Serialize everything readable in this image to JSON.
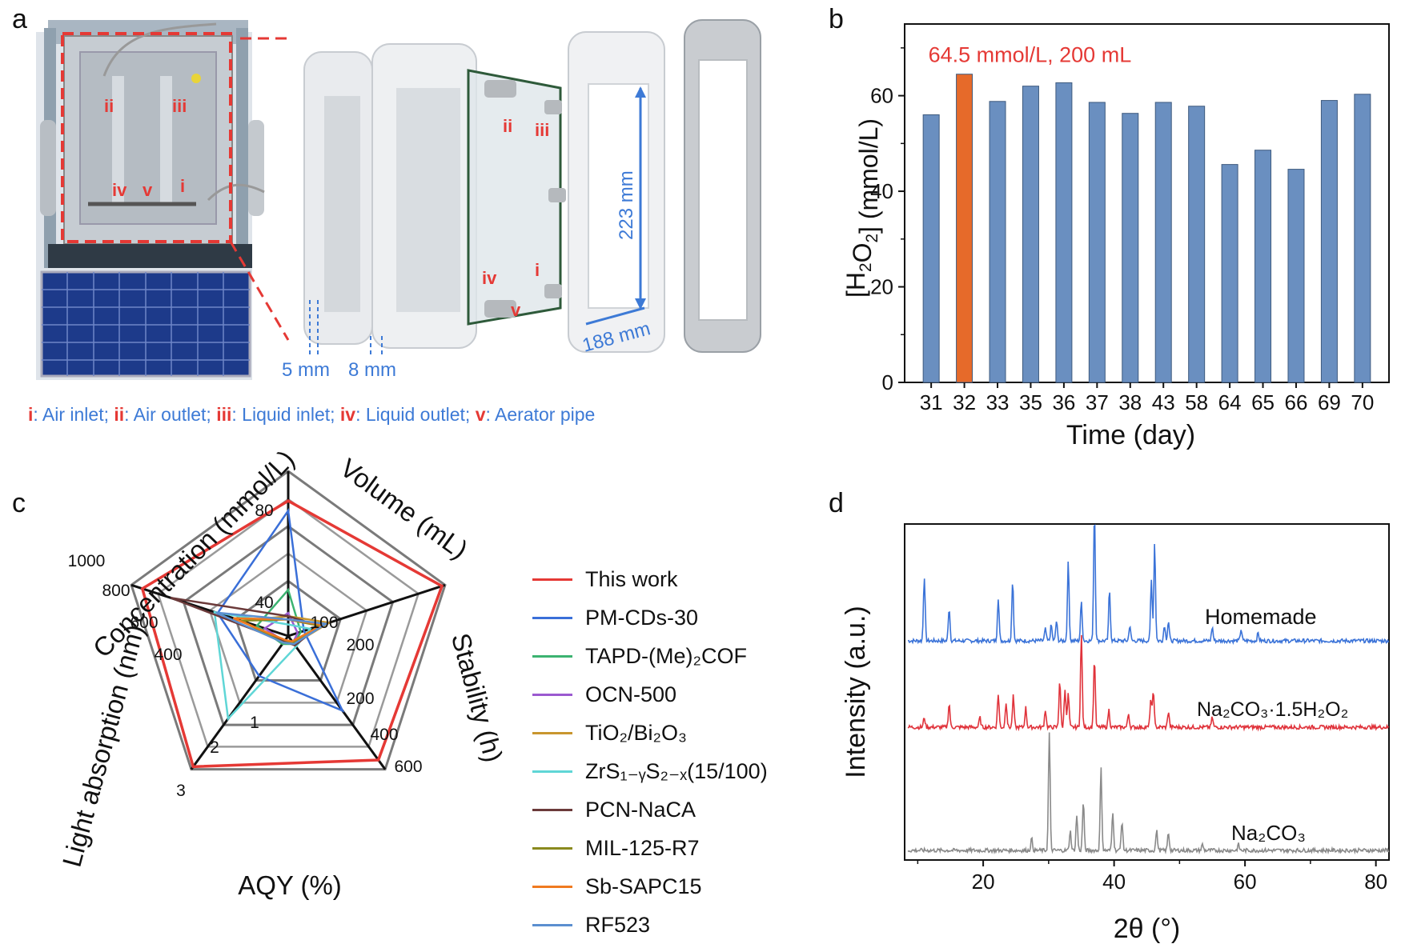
{
  "panels": {
    "a": {
      "label": "a",
      "photo_labels": [
        "i",
        "ii",
        "iii",
        "iv",
        "v"
      ],
      "dimensions": [
        "223 mm",
        "188 mm",
        "5 mm",
        "8 mm"
      ],
      "legend": [
        {
          "num": "i",
          "text": ": Air inlet; "
        },
        {
          "num": "ii",
          "text": ": Air outlet; "
        },
        {
          "num": "iii",
          "text": ": Liquid inlet; "
        },
        {
          "num": "iv",
          "text": ": Liquid outlet; "
        },
        {
          "num": "v",
          "text": ": Aerator pipe"
        }
      ]
    },
    "b_label": "b",
    "c_label": "c",
    "d_label": "d"
  },
  "colors": {
    "bar": "#6a8fc0",
    "bar_highlight": "#e66a2a",
    "red": "#e53935",
    "blue": "#3d7ad6",
    "xrd_blue": "#3b73d8",
    "xrd_red": "#e0333b",
    "xrd_gray": "#8a8a8a"
  },
  "chart_data": [
    {
      "id": "b",
      "type": "bar",
      "categories": [
        "31",
        "32",
        "33",
        "35",
        "36",
        "37",
        "38",
        "43",
        "58",
        "64",
        "65",
        "66",
        "69",
        "70"
      ],
      "values": [
        56,
        64.5,
        58.8,
        62,
        62.7,
        58.6,
        56.3,
        58.6,
        57.8,
        45.6,
        48.6,
        44.6,
        59,
        60.3
      ],
      "highlight_index": 1,
      "annotation": "64.5 mmol/L, 200 mL",
      "xlabel": "Time (day)",
      "ylabel": "[H2O2] (mmol/L)",
      "ylim": [
        0,
        75
      ],
      "yticks": [
        "0",
        "20",
        "40",
        "60"
      ]
    },
    {
      "id": "c",
      "type": "radar",
      "axes": [
        {
          "name": "Concentration (mmol/L)",
          "ticks": [
            "40",
            "80"
          ]
        },
        {
          "name": "Volume (mL)",
          "ticks": [
            "100",
            "200"
          ]
        },
        {
          "name": "Stability (h)",
          "ticks": [
            "200",
            "400",
            "600"
          ]
        },
        {
          "name": "AQY (%)",
          "ticks": [
            "1",
            "2",
            "3"
          ]
        },
        {
          "name": "Light absorption (nm)",
          "ticks": [
            "400",
            "600",
            "800",
            "1000"
          ]
        }
      ],
      "series": [
        {
          "name": "This work",
          "color": "#e53935",
          "values": [
            0.82,
            0.98,
            0.93,
            0.98,
            0.93
          ]
        },
        {
          "name": "PM-CDs-30",
          "color": "#3a6fd8",
          "values": [
            0.76,
            0.1,
            0.56,
            0.3,
            0.45
          ]
        },
        {
          "name": "TAPD-(Me)₂COF",
          "color": "#3cb371",
          "values": [
            0.28,
            0.08,
            0.06,
            0.06,
            0.2
          ]
        },
        {
          "name": "OCN-500",
          "color": "#9b59d0",
          "values": [
            0.14,
            0.06,
            0.05,
            0.04,
            0.15
          ]
        },
        {
          "name": "TiO₂/Bi₂O₃",
          "color": "#c8962e",
          "values": [
            0.12,
            0.26,
            0.06,
            0.04,
            0.3
          ]
        },
        {
          "name": "ZrS₁₋ᵧS₂₋ₓ(15/100)",
          "color": "#5fd6d6",
          "values": [
            0.07,
            0.14,
            0.08,
            0.62,
            0.47
          ]
        },
        {
          "name": "PCN-NaCA",
          "color": "#6b3a3a",
          "values": [
            0.12,
            0.2,
            0.07,
            0.04,
            0.75
          ]
        },
        {
          "name": "MIL-125-R7",
          "color": "#8a8a1e",
          "values": [
            0.1,
            0.2,
            0.05,
            0.05,
            0.3
          ]
        },
        {
          "name": "Sb-SAPC15",
          "color": "#f07a20",
          "values": [
            0.1,
            0.22,
            0.04,
            0.03,
            0.35
          ]
        },
        {
          "name": "RF523",
          "color": "#5b8fd0",
          "values": [
            0.1,
            0.24,
            0.06,
            0.05,
            0.46
          ]
        }
      ]
    },
    {
      "id": "d",
      "type": "line",
      "title": "",
      "xlabel": "2θ (°)",
      "ylabel": "Intensity (a.u.)",
      "xlim": [
        8,
        82
      ],
      "xticks": [
        "20",
        "40",
        "60",
        "80"
      ],
      "series": [
        {
          "name": "Homemade",
          "color": "#3b73d8",
          "peaks": [
            [
              11,
              0.33
            ],
            [
              14.8,
              0.17
            ],
            [
              22.3,
              0.22
            ],
            [
              24.5,
              0.31
            ],
            [
              29.5,
              0.06
            ],
            [
              30.4,
              0.08
            ],
            [
              31.2,
              0.1
            ],
            [
              33,
              0.4
            ],
            [
              35,
              0.2
            ],
            [
              37,
              0.66
            ],
            [
              39.3,
              0.26
            ],
            [
              42.4,
              0.08
            ],
            [
              45.7,
              0.31
            ],
            [
              46.2,
              0.5
            ],
            [
              47.7,
              0.08
            ],
            [
              48.3,
              0.1
            ],
            [
              55,
              0.07
            ],
            [
              59.4,
              0.06
            ],
            [
              62,
              0.04
            ]
          ]
        },
        {
          "name": "Na₂CO₃·1.5H₂O₂",
          "color": "#e0333b",
          "peaks": [
            [
              11,
              0.05
            ],
            [
              14.8,
              0.12
            ],
            [
              19.5,
              0.05
            ],
            [
              22.3,
              0.17
            ],
            [
              23.5,
              0.13
            ],
            [
              24.6,
              0.16
            ],
            [
              26.5,
              0.1
            ],
            [
              29.5,
              0.09
            ],
            [
              31.7,
              0.24
            ],
            [
              32.5,
              0.2
            ],
            [
              33,
              0.17
            ],
            [
              35,
              0.47
            ],
            [
              37,
              0.35
            ],
            [
              39.2,
              0.09
            ],
            [
              42.2,
              0.07
            ],
            [
              45.6,
              0.14
            ],
            [
              46,
              0.19
            ],
            [
              48.3,
              0.08
            ],
            [
              55,
              0.05
            ]
          ]
        },
        {
          "name": "Na₂CO₃",
          "color": "#8a8a8a",
          "peaks": [
            [
              27.4,
              0.06
            ],
            [
              30.1,
              0.6
            ],
            [
              33.3,
              0.1
            ],
            [
              34.3,
              0.18
            ],
            [
              35.3,
              0.25
            ],
            [
              38,
              0.42
            ],
            [
              39.8,
              0.2
            ],
            [
              41.2,
              0.15
            ],
            [
              46.5,
              0.1
            ],
            [
              48.3,
              0.09
            ],
            [
              53.5,
              0.03
            ],
            [
              59,
              0.03
            ]
          ]
        }
      ]
    }
  ]
}
